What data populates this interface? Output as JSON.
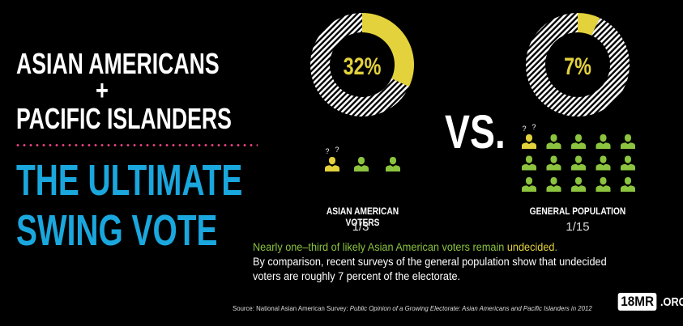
{
  "headline": {
    "line1": "ASIAN AMERICANS",
    "plus": "+",
    "line2": "PACIFIC ISLANDERS",
    "big1": "THE ULTIMATE",
    "big2": "SWING VOTE"
  },
  "vs": "VS.",
  "colors": {
    "accent_blue": "#1aa7de",
    "undecided_yellow": "#e3d23c",
    "decided_green": "#8cc43f",
    "dots_pink": "#e6417f"
  },
  "icons": {
    "person": "person-icon",
    "question": "question-marks-icon"
  },
  "chart_data": [
    {
      "type": "pie",
      "label": "ASIAN AMERICAN VOTERS",
      "values": [
        32,
        68
      ],
      "value_label": "32%",
      "fraction": "1/3",
      "icon_total": 3,
      "icon_undecided": 1
    },
    {
      "type": "pie",
      "label": "GENERAL POPULATION",
      "values": [
        7,
        93
      ],
      "value_label": "7%",
      "fraction": "1/15",
      "icon_total": 15,
      "icon_undecided": 1
    }
  ],
  "description": {
    "line_green": "Nearly one–third of likely Asian American voters remain ",
    "line_yellow": "undecided",
    "line_end": ".",
    "line2": "By comparison, recent surveys of the general population show that undecided voters are roughly 7 percent of the electorate."
  },
  "source": {
    "prefix": "Source: National Asian American Survey: ",
    "title": "Public Opinion of a Growing Electorate: Asian Americans and Pacific Islanders in 2012"
  },
  "logo": {
    "box": "18MR",
    "suffix": ".ORG"
  }
}
